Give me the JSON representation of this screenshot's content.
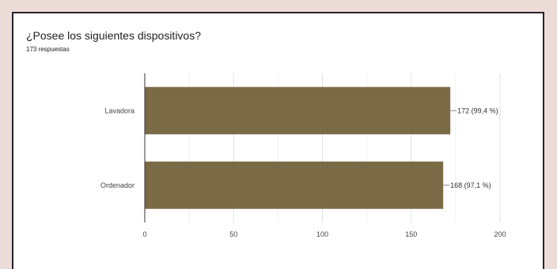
{
  "header": {
    "title": "¿Posee los siguientes dispositivos?",
    "subtitle": "173 respuestas"
  },
  "chart_data": {
    "type": "bar",
    "orientation": "horizontal",
    "categories": [
      "Lavadora",
      "Ordenador"
    ],
    "values": [
      172,
      168
    ],
    "data_labels": [
      "172 (99,4 %)",
      "168 (97,1 %)"
    ],
    "xlim": [
      0,
      200
    ],
    "xticks": [
      0,
      50,
      100,
      150,
      200
    ],
    "xtick_labels": [
      "0",
      "50",
      "100",
      "150",
      "200"
    ],
    "grid": true,
    "bar_color": "#7a6a46"
  }
}
